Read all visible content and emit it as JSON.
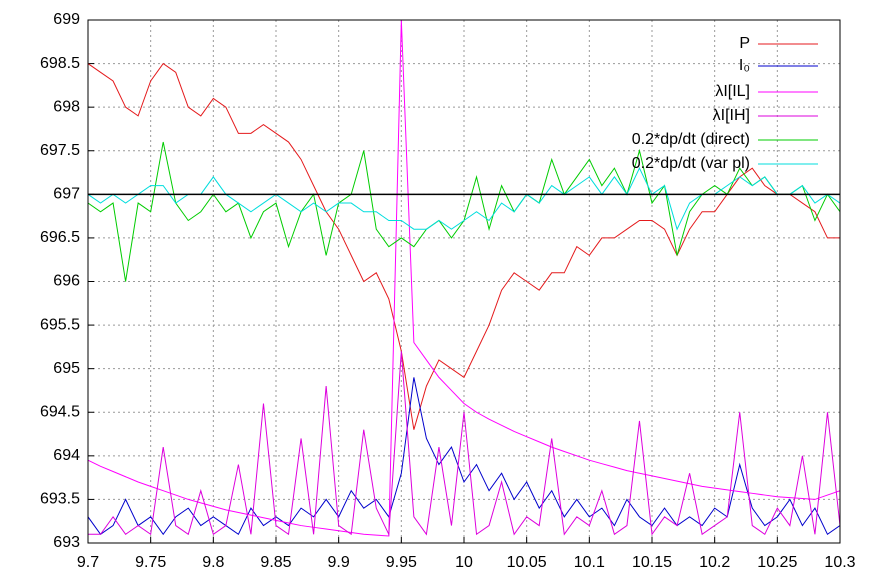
{
  "chart_data": {
    "type": "line",
    "x": [
      9.7,
      9.71,
      9.72,
      9.73,
      9.74,
      9.75,
      9.76,
      9.77,
      9.78,
      9.79,
      9.8,
      9.81,
      9.82,
      9.83,
      9.84,
      9.85,
      9.86,
      9.87,
      9.88,
      9.89,
      9.9,
      9.91,
      9.92,
      9.93,
      9.94,
      9.95,
      9.96,
      9.97,
      9.98,
      9.99,
      10,
      10.01,
      10.02,
      10.03,
      10.04,
      10.05,
      10.06,
      10.07,
      10.08,
      10.09,
      10.1,
      10.11,
      10.12,
      10.13,
      10.14,
      10.15,
      10.16,
      10.17,
      10.18,
      10.19,
      10.2,
      10.21,
      10.22,
      10.23,
      10.24,
      10.25,
      10.26,
      10.27,
      10.28,
      10.29,
      10.3
    ],
    "xlim": [
      9.7,
      10.3
    ],
    "xticks": [
      9.7,
      9.75,
      9.8,
      9.85,
      9.9,
      9.95,
      10,
      10.05,
      10.1,
      10.15,
      10.2,
      10.25,
      10.3
    ],
    "ylim": [
      693,
      699
    ],
    "yticks": [
      693,
      693.5,
      694,
      694.5,
      695,
      695.5,
      696,
      696.5,
      697,
      697.5,
      698,
      698.5,
      699
    ],
    "grid": true,
    "reference_line": 697,
    "legend": "top-right",
    "series": [
      {
        "name": "P",
        "color": "#e41a1c",
        "values": [
          698.5,
          698.4,
          698.3,
          698,
          697.9,
          698.3,
          698.5,
          698.4,
          698,
          697.9,
          698.1,
          698,
          697.7,
          697.7,
          697.8,
          697.7,
          697.6,
          697.4,
          697.1,
          696.8,
          696.6,
          696.3,
          696,
          696.1,
          695.8,
          695.2,
          694.3,
          694.8,
          695.1,
          695,
          694.9,
          695.2,
          695.5,
          695.9,
          696.1,
          696,
          695.9,
          696.1,
          696.1,
          696.4,
          696.3,
          696.5,
          696.5,
          696.6,
          696.7,
          696.7,
          696.6,
          696.3,
          696.6,
          696.8,
          696.8,
          697,
          697.2,
          697.3,
          697.1,
          697,
          697,
          696.9,
          696.8,
          696.5,
          696.5
        ]
      },
      {
        "name": "I₀",
        "color": "#0000cc",
        "values": [
          693.3,
          693.1,
          693.2,
          693.5,
          693.2,
          693.3,
          693.1,
          693.3,
          693.4,
          693.2,
          693.3,
          693.2,
          693.1,
          693.4,
          693.2,
          693.3,
          693.2,
          693.4,
          693.3,
          693.5,
          693.3,
          693.6,
          693.4,
          693.5,
          693.3,
          693.8,
          694.9,
          694.2,
          693.9,
          694.1,
          693.7,
          693.9,
          693.6,
          693.8,
          693.5,
          693.7,
          693.4,
          693.6,
          693.3,
          693.5,
          693.3,
          693.4,
          693.2,
          693.5,
          693.3,
          693.2,
          693.4,
          693.2,
          693.3,
          693.2,
          693.4,
          693.3,
          693.9,
          693.4,
          693.2,
          693.3,
          693.5,
          693.2,
          693.4,
          693.1,
          693.2
        ]
      },
      {
        "name": "λI[IL]",
        "color": "#ff00ff",
        "values": [
          693.95,
          693.88,
          693.82,
          693.76,
          693.7,
          693.65,
          693.6,
          693.55,
          693.5,
          693.46,
          693.42,
          693.38,
          693.35,
          693.32,
          693.29,
          693.26,
          693.23,
          693.2,
          693.18,
          693.16,
          693.14,
          693.12,
          693.1,
          693.09,
          693.08,
          699,
          695.3,
          695.1,
          694.9,
          694.75,
          694.6,
          694.5,
          694.42,
          694.35,
          694.28,
          694.22,
          694.16,
          694.1,
          694.05,
          694,
          693.95,
          693.91,
          693.87,
          693.83,
          693.8,
          693.77,
          693.74,
          693.71,
          693.68,
          693.65,
          693.63,
          693.61,
          693.59,
          693.57,
          693.55,
          693.53,
          693.52,
          693.51,
          693.5,
          693.55,
          693.6
        ]
      },
      {
        "name": "λI[IH]",
        "color": "#dd00dd",
        "values": [
          693.1,
          693.1,
          693.3,
          693.1,
          693.2,
          693.1,
          694.1,
          693.2,
          693.1,
          693.6,
          693.1,
          693.2,
          693.9,
          693.1,
          694.6,
          693.2,
          693.1,
          694.2,
          693.1,
          694.8,
          693.2,
          693.1,
          694.3,
          693.4,
          693.1,
          695.2,
          693.3,
          693.1,
          694.1,
          693.2,
          694.5,
          693.1,
          693.2,
          693.7,
          693.1,
          693.3,
          693.2,
          694.2,
          693.1,
          693.3,
          693.2,
          693.6,
          693.1,
          693.2,
          694.4,
          693.1,
          693.3,
          693.2,
          693.8,
          693.1,
          693.2,
          693.3,
          694.5,
          693.2,
          693.1,
          693.4,
          693.2,
          694.0,
          693.1,
          694.5,
          693.2
        ]
      },
      {
        "name": "0.2*dp/dt (direct)",
        "color": "#00cc00",
        "values": [
          696.9,
          696.8,
          696.9,
          696.0,
          696.9,
          696.8,
          697.6,
          696.9,
          696.7,
          696.8,
          697.0,
          696.8,
          696.9,
          696.5,
          696.8,
          696.9,
          696.4,
          696.8,
          697.0,
          696.3,
          696.9,
          697.0,
          697.5,
          696.6,
          696.4,
          696.5,
          696.4,
          696.6,
          696.7,
          696.5,
          696.7,
          697.2,
          696.6,
          697.1,
          696.8,
          697.0,
          696.9,
          697.4,
          697.0,
          697.2,
          697.4,
          697.1,
          697.3,
          697.0,
          697.5,
          696.9,
          697.1,
          696.3,
          696.8,
          697.0,
          697.1,
          697.0,
          697.3,
          697.1,
          697.2,
          697.0,
          697.0,
          697.1,
          696.7,
          697.0,
          696.8
        ]
      },
      {
        "name": "0.2*dp/dt (var pl)",
        "color": "#00dddd",
        "values": [
          697.0,
          696.9,
          697.0,
          696.9,
          697.0,
          697.1,
          697.1,
          696.9,
          697.0,
          697.0,
          697.2,
          697.0,
          696.9,
          696.8,
          696.9,
          697.0,
          696.9,
          696.8,
          696.9,
          696.8,
          696.9,
          696.9,
          696.8,
          696.8,
          696.7,
          696.7,
          696.6,
          696.6,
          696.7,
          696.6,
          696.7,
          696.8,
          696.7,
          696.9,
          696.8,
          697.0,
          696.9,
          697.1,
          697.0,
          697.1,
          697.2,
          697.0,
          697.2,
          697.0,
          697.3,
          697.0,
          697.1,
          696.6,
          696.9,
          697.0,
          697.0,
          697.1,
          697.2,
          697.1,
          697.2,
          697.0,
          697.0,
          697.1,
          696.9,
          697.0,
          696.9
        ]
      }
    ]
  }
}
